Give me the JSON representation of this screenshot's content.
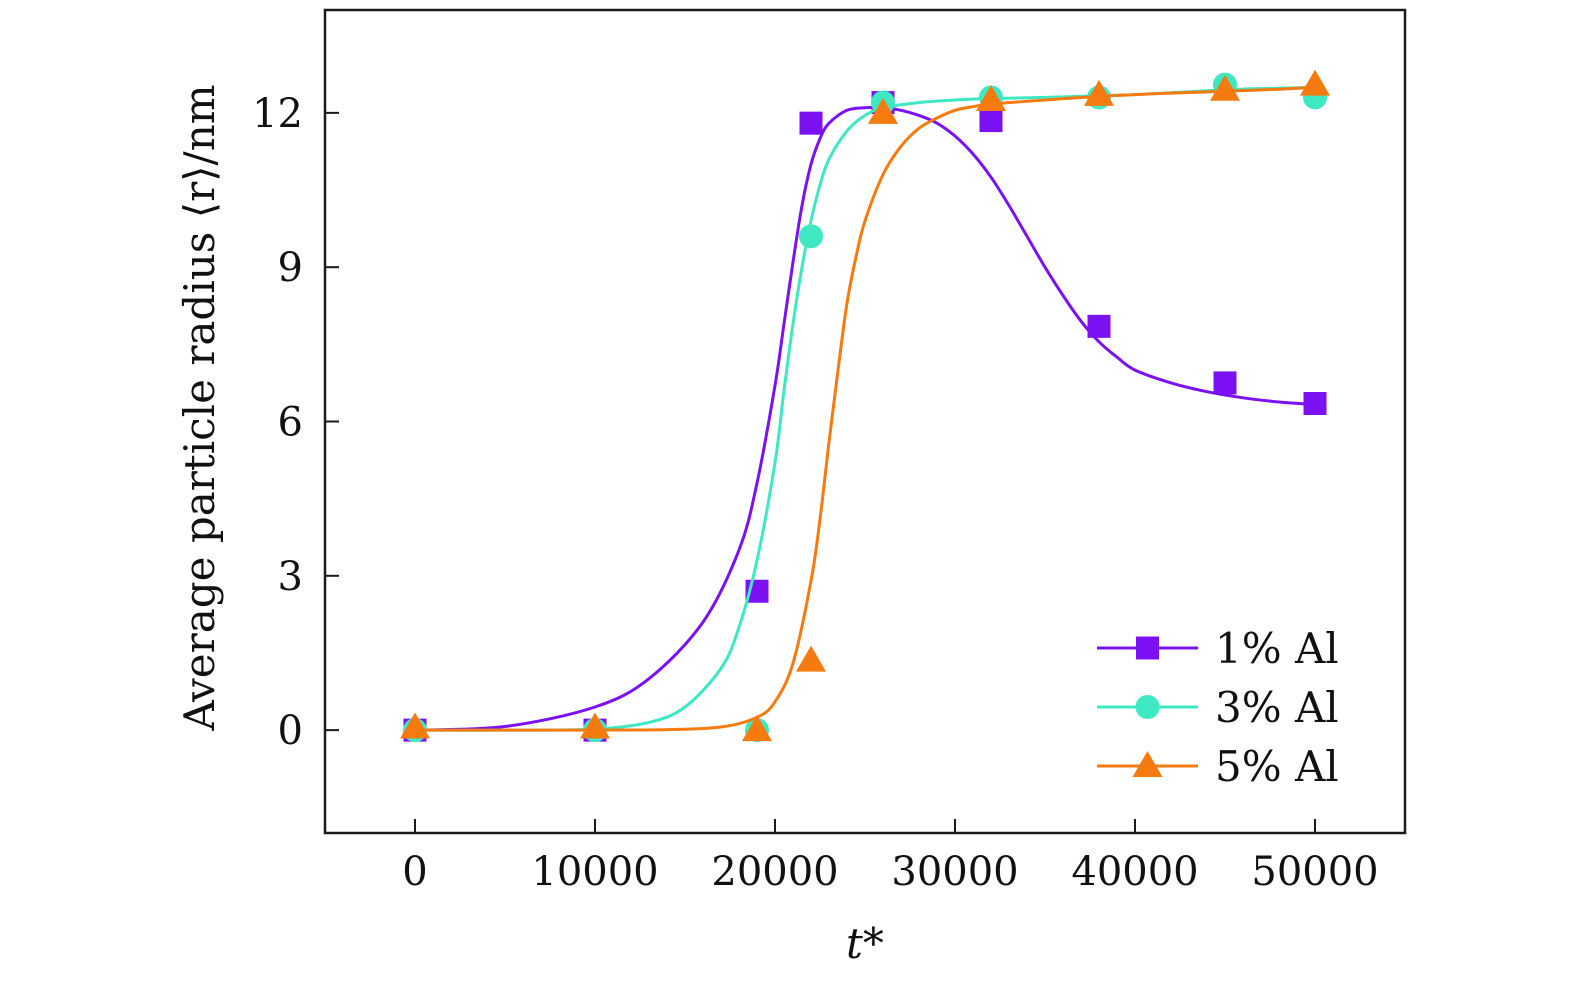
{
  "chart_data": {
    "type": "line",
    "title": "",
    "xlabel": "t*",
    "ylabel": "Average particle radius ⟨r⟩/nm",
    "xlim": [
      -5000,
      55000
    ],
    "ylim": [
      -2,
      14
    ],
    "x_ticks": [
      0,
      10000,
      20000,
      30000,
      40000,
      50000
    ],
    "x_tick_labels": [
      "0",
      "10000",
      "20000",
      "30000",
      "40000",
      "50000"
    ],
    "y_ticks": [
      0,
      3,
      6,
      9,
      12
    ],
    "y_tick_labels": [
      "0",
      "3",
      "6",
      "9",
      "12"
    ],
    "grid": false,
    "legend_position": "bottom-right",
    "x": [
      0,
      10000,
      19000,
      22000,
      26000,
      32000,
      38000,
      45000,
      50000
    ],
    "series": [
      {
        "name": "1% Al",
        "color": "#7b11f2",
        "marker": "square",
        "values": [
          0,
          0,
          2.7,
          11.8,
          12.2,
          11.85,
          7.85,
          6.75,
          6.35
        ],
        "fit_x": [
          0,
          5000,
          10000,
          13000,
          16000,
          18000,
          19000,
          20000,
          20500,
          21000,
          21500,
          22000,
          22500,
          23000,
          24000,
          25000,
          26000,
          27000,
          28000,
          29000,
          30000,
          31000,
          32000,
          33000,
          34000,
          35000,
          36000,
          37000,
          38000,
          39000,
          40000,
          42000,
          44000,
          46000,
          48000,
          50000
        ],
        "fit_y": [
          0,
          0.07,
          0.45,
          1.0,
          2.1,
          3.5,
          4.8,
          6.7,
          7.9,
          9.1,
          10.2,
          11.0,
          11.5,
          11.8,
          12.05,
          12.1,
          12.1,
          12.05,
          11.95,
          11.8,
          11.55,
          11.2,
          10.75,
          10.2,
          9.6,
          9.0,
          8.45,
          7.95,
          7.55,
          7.25,
          7.0,
          6.75,
          6.58,
          6.46,
          6.38,
          6.33
        ]
      },
      {
        "name": "3% Al",
        "color": "#3ee8c3",
        "marker": "circle",
        "values": [
          0,
          0,
          0,
          9.6,
          12.2,
          12.3,
          12.3,
          12.55,
          12.3
        ],
        "fit_x": [
          0,
          5000,
          10000,
          13000,
          15000,
          17000,
          18000,
          19000,
          20000,
          20500,
          21000,
          21500,
          22000,
          22500,
          23000,
          24000,
          25000,
          26000,
          28000,
          30000,
          32000,
          35000,
          38000,
          41000,
          45000,
          48000,
          50000
        ],
        "fit_y": [
          0,
          0,
          0.02,
          0.15,
          0.45,
          1.2,
          2.0,
          3.3,
          5.2,
          6.6,
          7.9,
          9.0,
          9.9,
          10.6,
          11.1,
          11.65,
          11.95,
          12.1,
          12.2,
          12.25,
          12.28,
          12.3,
          12.33,
          12.37,
          12.45,
          12.48,
          12.5
        ]
      },
      {
        "name": "5% Al",
        "color": "#f57a10",
        "marker": "triangle",
        "values": [
          0.05,
          0.05,
          0,
          1.35,
          12.0,
          12.25,
          12.35,
          12.45,
          12.55
        ],
        "fit_x": [
          0,
          5000,
          10000,
          14000,
          17000,
          19000,
          20000,
          21000,
          22000,
          22500,
          23000,
          23500,
          24000,
          24500,
          25000,
          26000,
          27000,
          28000,
          29000,
          30000,
          31000,
          32000,
          35000,
          38000,
          41000,
          45000,
          48000,
          50000
        ],
        "fit_y": [
          0,
          0,
          0,
          0.01,
          0.06,
          0.25,
          0.55,
          1.3,
          2.9,
          4.1,
          5.6,
          7.0,
          8.3,
          9.2,
          9.9,
          10.8,
          11.35,
          11.7,
          11.9,
          12.05,
          12.12,
          12.17,
          12.25,
          12.32,
          12.37,
          12.42,
          12.46,
          12.5
        ]
      }
    ]
  }
}
